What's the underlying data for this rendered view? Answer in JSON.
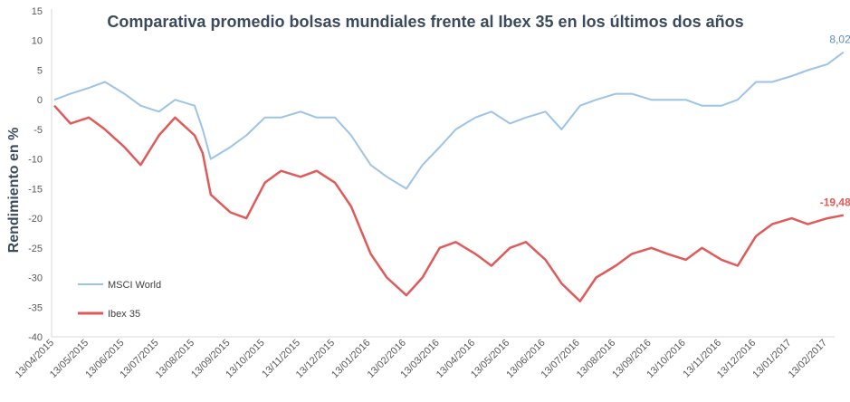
{
  "chart_data": {
    "type": "line",
    "title": "Comparativa  promedio  bolsas  mundiales  frente al Ibex 35 en los últimos dos años",
    "xlabel": "",
    "ylabel": "Rendimiento en %",
    "ylim": [
      -40,
      15
    ],
    "y_ticks": [
      "15",
      "10",
      "5",
      "0",
      "-5",
      "-10",
      "-15",
      "-20",
      "-25",
      "-30",
      "-35",
      "-40"
    ],
    "x_tick_labels": [
      "13/04/2015",
      "13/05/2015",
      "13/06/2015",
      "13/07/2015",
      "13/08/2015",
      "13/09/2015",
      "13/10/2015",
      "13/11/2015",
      "13/12/2015",
      "13/01/2016",
      "13/02/2016",
      "13/03/2016",
      "13/04/2016",
      "13/05/2016",
      "13/06/2016",
      "13/07/2016",
      "13/08/2016",
      "13/09/2016",
      "13/10/2016",
      "13/11/2016",
      "13/12/2016",
      "13/01/2017",
      "13/02/2017"
    ],
    "grid": false,
    "legend_position": "bottom-left",
    "series": [
      {
        "name": "MSCI World",
        "color": "#9dc3e6",
        "end_label": "8,02",
        "end_label_color": "#5b8fba",
        "x": [
          "13/04/2015",
          "27/04/2015",
          "13/05/2015",
          "27/05/2015",
          "13/06/2015",
          "27/06/2015",
          "13/07/2015",
          "27/07/2015",
          "13/08/2015",
          "20/08/2015",
          "27/08/2015",
          "13/09/2015",
          "27/09/2015",
          "13/10/2015",
          "27/10/2015",
          "13/11/2015",
          "27/11/2015",
          "13/12/2015",
          "27/12/2015",
          "13/01/2016",
          "27/01/2016",
          "13/02/2016",
          "27/02/2016",
          "13/03/2016",
          "27/03/2016",
          "13/04/2016",
          "27/04/2016",
          "13/05/2016",
          "27/05/2016",
          "13/06/2016",
          "27/06/2016",
          "13/07/2016",
          "27/07/2016",
          "13/08/2016",
          "27/08/2016",
          "13/09/2016",
          "27/09/2016",
          "13/10/2016",
          "27/10/2016",
          "13/11/2016",
          "27/11/2016",
          "13/12/2016",
          "27/12/2016",
          "13/01/2017",
          "27/01/2017",
          "13/02/2017",
          "27/02/2017"
        ],
        "values": [
          0,
          1,
          2,
          3,
          1,
          -1,
          -2,
          0,
          -1,
          -5,
          -10,
          -8,
          -6,
          -3,
          -3,
          -2,
          -3,
          -3,
          -6,
          -11,
          -13,
          -15,
          -11,
          -8,
          -5,
          -3,
          -2,
          -4,
          -3,
          -2,
          -5,
          -1,
          0,
          1,
          1,
          0,
          0,
          0,
          -1,
          -1,
          0,
          3,
          3,
          4,
          5,
          6,
          8.02
        ]
      },
      {
        "name": "Ibex 35",
        "color": "#e05a5a",
        "end_label": "-19,48",
        "end_label_color": "#e05a5a",
        "x": [
          "13/04/2015",
          "27/04/2015",
          "13/05/2015",
          "27/05/2015",
          "13/06/2015",
          "27/06/2015",
          "13/07/2015",
          "27/07/2015",
          "13/08/2015",
          "20/08/2015",
          "27/08/2015",
          "13/09/2015",
          "27/09/2015",
          "13/10/2015",
          "27/10/2015",
          "13/11/2015",
          "27/11/2015",
          "13/12/2015",
          "27/12/2015",
          "13/01/2016",
          "27/01/2016",
          "13/02/2016",
          "27/02/2016",
          "13/03/2016",
          "27/03/2016",
          "13/04/2016",
          "27/04/2016",
          "13/05/2016",
          "27/05/2016",
          "13/06/2016",
          "27/06/2016",
          "13/07/2016",
          "27/07/2016",
          "13/08/2016",
          "27/08/2016",
          "13/09/2016",
          "27/09/2016",
          "13/10/2016",
          "27/10/2016",
          "13/11/2016",
          "27/11/2016",
          "13/12/2016",
          "27/12/2016",
          "13/01/2017",
          "27/01/2017",
          "13/02/2017",
          "27/02/2017"
        ],
        "values": [
          -1,
          -4,
          -3,
          -5,
          -8,
          -11,
          -6,
          -3,
          -6,
          -9,
          -16,
          -19,
          -20,
          -14,
          -12,
          -13,
          -12,
          -14,
          -18,
          -26,
          -30,
          -33,
          -30,
          -25,
          -24,
          -26,
          -28,
          -25,
          -24,
          -27,
          -31,
          -34,
          -30,
          -28,
          -26,
          -25,
          -26,
          -27,
          -25,
          -27,
          -28,
          -23,
          -21,
          -20,
          -21,
          -20,
          -19.48
        ]
      }
    ]
  }
}
